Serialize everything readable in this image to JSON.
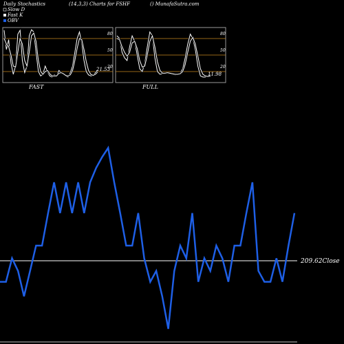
{
  "header": {
    "title": "Daily Stochastics",
    "params": "(14,3,3) Charts for FSHF",
    "site": "() MunafaSutra.com"
  },
  "legend": [
    {
      "label": "Slow D",
      "color": "#000000"
    },
    {
      "label": "Fast K",
      "color": "#ffffff"
    },
    {
      "label": "OBV",
      "color": "#1e5fe6"
    }
  ],
  "colors": {
    "background": "#000000",
    "obv_line": "#1e5fe6",
    "level_lines": "#c8881e",
    "stoch_lines": "#ffffff"
  },
  "chart_data": [
    {
      "type": "line",
      "name": "fast-panel",
      "label": "FAST",
      "ylim": [
        0,
        100
      ],
      "levels": [
        20,
        50,
        80
      ],
      "ticks": [
        "80",
        "50",
        "20"
      ],
      "last_value": "21.53",
      "series": [
        {
          "name": "Fast K",
          "values": [
            95,
            60,
            78,
            35,
            15,
            30,
            88,
            95,
            40,
            18,
            30,
            85,
            96,
            92,
            55,
            20,
            12,
            15,
            30,
            20,
            12,
            10,
            14,
            12,
            22,
            18,
            15,
            12,
            10,
            18,
            30,
            55,
            80,
            92,
            72,
            40,
            20,
            14,
            12,
            13,
            18,
            22
          ]
        },
        {
          "name": "Slow D",
          "values": [
            80,
            70,
            65,
            50,
            30,
            28,
            55,
            80,
            70,
            40,
            30,
            55,
            85,
            90,
            75,
            40,
            20,
            15,
            20,
            22,
            16,
            12,
            12,
            12,
            17,
            18,
            16,
            13,
            12,
            14,
            22,
            40,
            62,
            80,
            78,
            60,
            38,
            22,
            15,
            13,
            15,
            19
          ]
        }
      ]
    },
    {
      "type": "line",
      "name": "full-panel",
      "label": "FULL",
      "ylim": [
        0,
        100
      ],
      "levels": [
        20,
        50,
        80
      ],
      "ticks": [
        "80",
        "50",
        "20"
      ],
      "last_value": "11.98",
      "series": [
        {
          "name": "Fast K",
          "values": [
            85,
            80,
            55,
            45,
            40,
            65,
            85,
            75,
            50,
            25,
            20,
            35,
            65,
            92,
            85,
            45,
            20,
            15,
            16,
            18,
            17,
            16,
            15,
            14,
            15,
            17,
            25,
            45,
            70,
            88,
            80,
            60,
            30,
            12,
            10,
            10,
            12,
            14
          ]
        },
        {
          "name": "Slow D",
          "values": [
            80,
            78,
            65,
            55,
            48,
            55,
            72,
            75,
            62,
            40,
            28,
            30,
            50,
            75,
            85,
            65,
            38,
            22,
            17,
            17,
            18,
            17,
            16,
            15,
            15,
            16,
            20,
            33,
            55,
            75,
            82,
            70,
            48,
            25,
            15,
            12,
            11,
            12
          ]
        }
      ]
    },
    {
      "type": "line",
      "name": "obv-main",
      "label": "OBV",
      "ylim": [
        0,
        1
      ],
      "reference_label": "209.62Close",
      "series": [
        {
          "name": "OBV",
          "values": [
            0.26,
            0.26,
            0.39,
            0.32,
            0.18,
            0.32,
            0.46,
            0.46,
            0.64,
            0.81,
            0.64,
            0.81,
            0.64,
            0.81,
            0.64,
            0.81,
            0.89,
            0.95,
            1.0,
            0.81,
            0.64,
            0.46,
            0.46,
            0.64,
            0.39,
            0.26,
            0.32,
            0.18,
            0.0,
            0.32,
            0.46,
            0.39,
            0.64,
            0.26,
            0.39,
            0.32,
            0.46,
            0.39,
            0.26,
            0.46,
            0.46,
            0.64,
            0.81,
            0.32,
            0.26,
            0.26,
            0.39,
            0.26,
            0.46,
            0.64
          ]
        }
      ]
    }
  ]
}
